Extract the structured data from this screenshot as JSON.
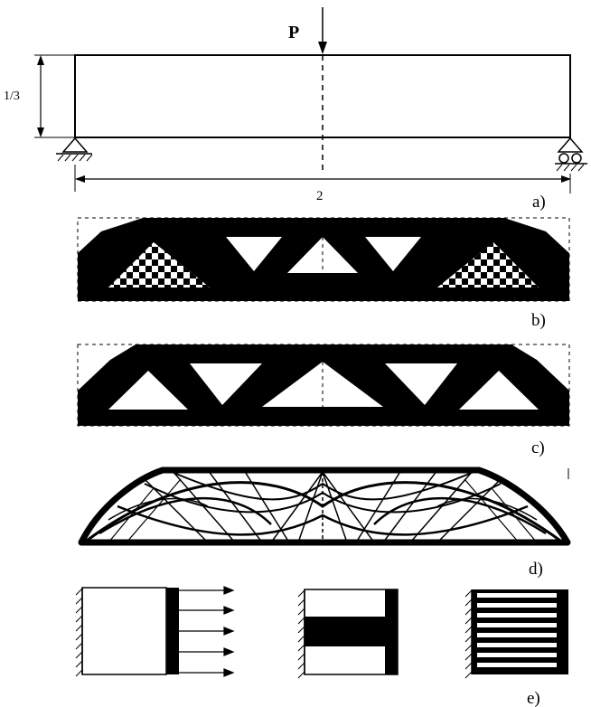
{
  "panel_a": {
    "load_label": "P",
    "height_label": "1/3",
    "span_label": "2",
    "caption": "a)"
  },
  "panel_b": {
    "caption": "b)"
  },
  "panel_c": {
    "caption": "c)"
  },
  "panel_d": {
    "caption": "d)"
  },
  "panel_e": {
    "caption": "e)"
  },
  "colors": {
    "ink": "#000000",
    "paper": "#ffffff"
  }
}
